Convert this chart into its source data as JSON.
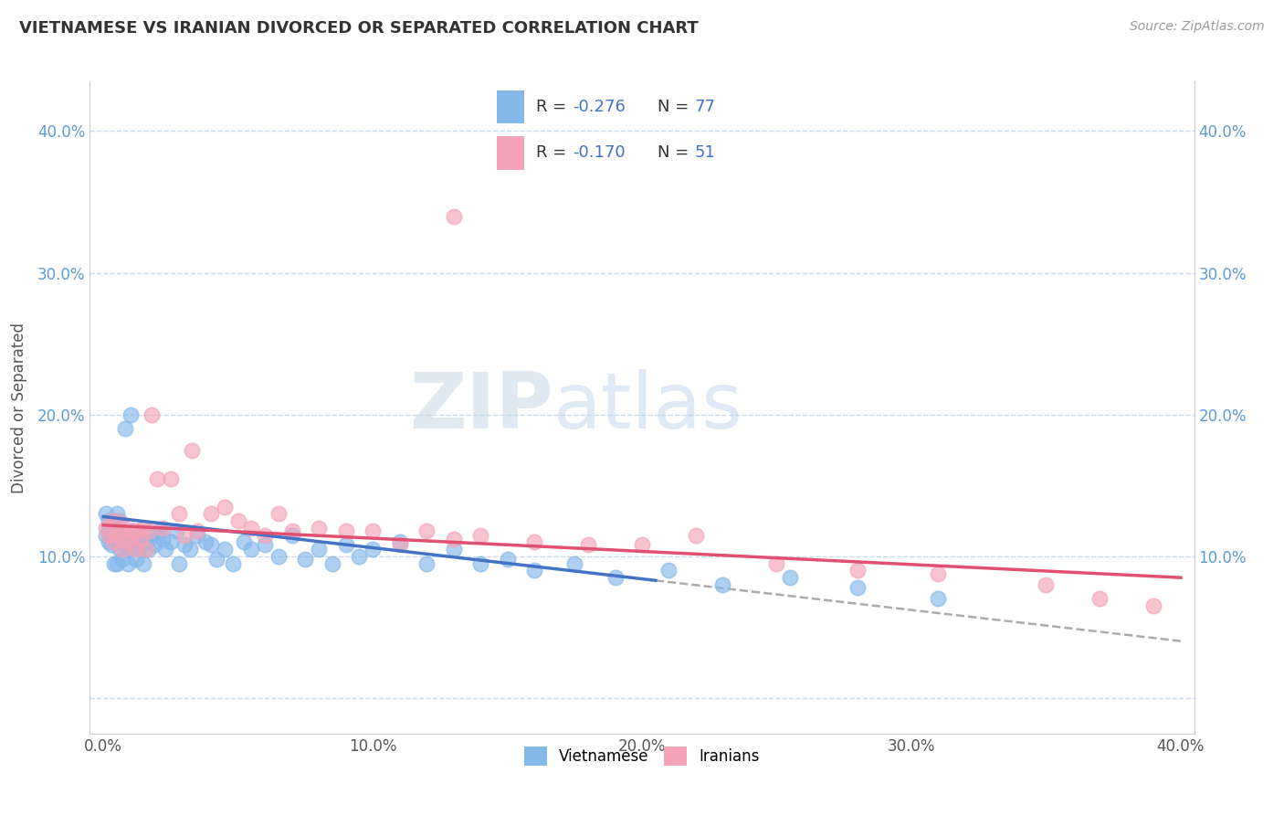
{
  "title": "VIETNAMESE VS IRANIAN DIVORCED OR SEPARATED CORRELATION CHART",
  "source": "Source: ZipAtlas.com",
  "ylabel": "Divorced or Separated",
  "xlim": [
    -0.005,
    0.405
  ],
  "ylim": [
    -0.025,
    0.435
  ],
  "yticks": [
    0.0,
    0.1,
    0.2,
    0.3,
    0.4
  ],
  "xticks": [
    0.0,
    0.1,
    0.2,
    0.3,
    0.4
  ],
  "xtick_labels": [
    "0.0%",
    "10.0%",
    "20.0%",
    "30.0%",
    "40.0%"
  ],
  "ytick_labels": [
    "",
    "10.0%",
    "20.0%",
    "30.0%",
    "40.0%"
  ],
  "viet_R": -0.276,
  "viet_N": 77,
  "iran_R": -0.17,
  "iran_N": 51,
  "viet_color": "#85b8ea",
  "iran_color": "#f4a3b8",
  "viet_line_color": "#4472c4",
  "iran_line_color": "#e05070",
  "background_color": "#ffffff",
  "grid_color": "#c8d8f0",
  "legend_label_viet": "Vietnamese",
  "legend_label_iran": "Iranians",
  "viet_scatter_x": [
    0.001,
    0.001,
    0.002,
    0.002,
    0.002,
    0.003,
    0.003,
    0.003,
    0.004,
    0.004,
    0.004,
    0.005,
    0.005,
    0.005,
    0.006,
    0.006,
    0.006,
    0.007,
    0.007,
    0.008,
    0.008,
    0.009,
    0.009,
    0.01,
    0.01,
    0.011,
    0.011,
    0.012,
    0.012,
    0.013,
    0.013,
    0.014,
    0.015,
    0.015,
    0.016,
    0.017,
    0.018,
    0.019,
    0.02,
    0.021,
    0.022,
    0.023,
    0.025,
    0.027,
    0.028,
    0.03,
    0.032,
    0.035,
    0.038,
    0.04,
    0.042,
    0.045,
    0.048,
    0.052,
    0.055,
    0.06,
    0.065,
    0.07,
    0.075,
    0.08,
    0.085,
    0.09,
    0.095,
    0.1,
    0.11,
    0.12,
    0.13,
    0.14,
    0.15,
    0.16,
    0.175,
    0.19,
    0.21,
    0.23,
    0.255,
    0.28,
    0.31
  ],
  "viet_scatter_y": [
    0.13,
    0.115,
    0.12,
    0.11,
    0.125,
    0.115,
    0.108,
    0.118,
    0.112,
    0.125,
    0.095,
    0.13,
    0.11,
    0.095,
    0.118,
    0.105,
    0.125,
    0.11,
    0.098,
    0.115,
    0.19,
    0.105,
    0.095,
    0.115,
    0.2,
    0.108,
    0.118,
    0.112,
    0.098,
    0.105,
    0.118,
    0.108,
    0.115,
    0.095,
    0.11,
    0.105,
    0.115,
    0.108,
    0.115,
    0.118,
    0.112,
    0.105,
    0.11,
    0.118,
    0.095,
    0.108,
    0.105,
    0.115,
    0.11,
    0.108,
    0.098,
    0.105,
    0.095,
    0.11,
    0.105,
    0.108,
    0.1,
    0.115,
    0.098,
    0.105,
    0.095,
    0.108,
    0.1,
    0.105,
    0.11,
    0.095,
    0.105,
    0.095,
    0.098,
    0.09,
    0.095,
    0.085,
    0.09,
    0.08,
    0.085,
    0.078,
    0.07
  ],
  "iran_scatter_x": [
    0.001,
    0.002,
    0.003,
    0.004,
    0.005,
    0.005,
    0.006,
    0.007,
    0.008,
    0.009,
    0.01,
    0.011,
    0.012,
    0.013,
    0.014,
    0.015,
    0.016,
    0.017,
    0.018,
    0.02,
    0.022,
    0.025,
    0.028,
    0.03,
    0.033,
    0.035,
    0.04,
    0.045,
    0.05,
    0.055,
    0.06,
    0.065,
    0.07,
    0.08,
    0.09,
    0.1,
    0.11,
    0.12,
    0.13,
    0.14,
    0.16,
    0.18,
    0.2,
    0.22,
    0.25,
    0.28,
    0.31,
    0.35,
    0.37,
    0.39,
    0.13
  ],
  "iran_scatter_y": [
    0.12,
    0.115,
    0.125,
    0.11,
    0.115,
    0.125,
    0.118,
    0.105,
    0.12,
    0.11,
    0.115,
    0.118,
    0.105,
    0.118,
    0.112,
    0.12,
    0.105,
    0.118,
    0.2,
    0.155,
    0.12,
    0.155,
    0.13,
    0.115,
    0.175,
    0.118,
    0.13,
    0.135,
    0.125,
    0.12,
    0.115,
    0.13,
    0.118,
    0.12,
    0.118,
    0.118,
    0.108,
    0.118,
    0.112,
    0.115,
    0.11,
    0.108,
    0.108,
    0.115,
    0.095,
    0.09,
    0.088,
    0.08,
    0.07,
    0.065,
    0.34
  ],
  "viet_line_x0": 0.0,
  "viet_line_y0": 0.128,
  "viet_line_x1": 0.205,
  "viet_line_y1": 0.083,
  "iran_line_x0": 0.0,
  "iran_line_y0": 0.122,
  "iran_line_x1": 0.4,
  "iran_line_y1": 0.085
}
